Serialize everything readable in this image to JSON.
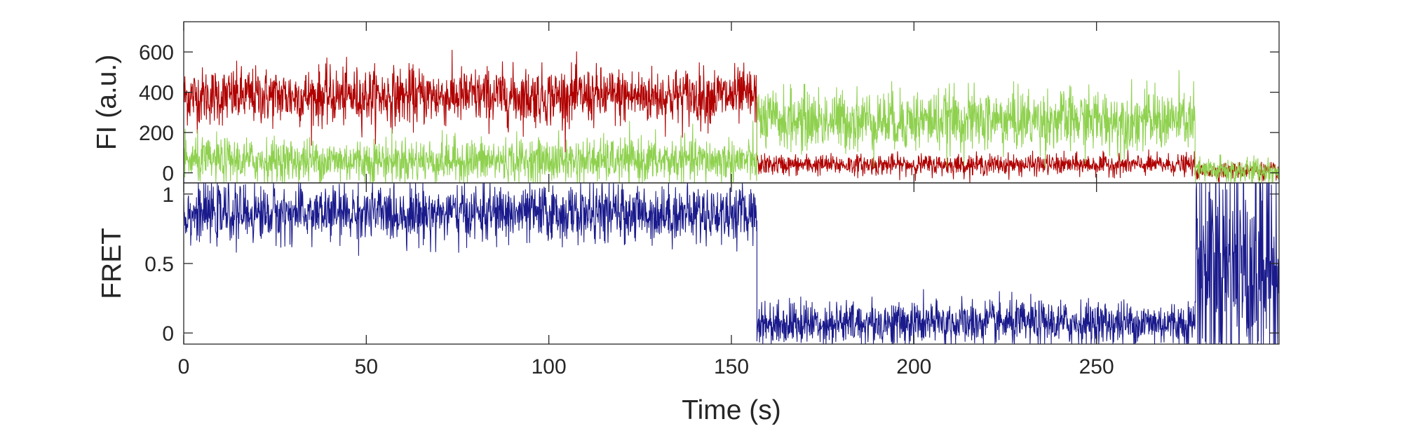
{
  "chart_data": [
    {
      "type": "line",
      "panel": "top",
      "ylabel": "FI (a.u.)",
      "xlim": [
        0,
        300
      ],
      "ylim": [
        -50,
        750
      ],
      "yticks": [
        0,
        200,
        400,
        600
      ],
      "ytick_labels": [
        "0",
        "200",
        "400",
        "600"
      ],
      "xticks": [
        0,
        50,
        100,
        150,
        200,
        250
      ],
      "grid": false,
      "series": [
        {
          "color": "#B00000",
          "segments": [
            {
              "x_start": 0,
              "x_end": 157,
              "mean": 380,
              "noise": 70
            },
            {
              "x_start": 157,
              "x_end": 277,
              "mean": 40,
              "noise": 25
            },
            {
              "x_start": 277,
              "x_end": 300,
              "mean": 10,
              "noise": 20
            }
          ]
        },
        {
          "color": "#8FD14F",
          "segments": [
            {
              "x_start": 0,
              "x_end": 157,
              "mean": 60,
              "noise": 55
            },
            {
              "x_start": 157,
              "x_end": 277,
              "mean": 260,
              "noise": 75
            },
            {
              "x_start": 277,
              "x_end": 300,
              "mean": 10,
              "noise": 35
            }
          ]
        }
      ]
    },
    {
      "type": "line",
      "panel": "bottom",
      "ylabel": "FRET",
      "xlabel": "Time (s)",
      "xlim": [
        0,
        300
      ],
      "ylim": [
        -0.08,
        1.08
      ],
      "yticks": [
        0,
        0.5,
        1
      ],
      "ytick_labels": [
        "0",
        "0.5",
        "1"
      ],
      "xticks": [
        0,
        50,
        100,
        150,
        200,
        250
      ],
      "xtick_labels": [
        "0",
        "50",
        "100",
        "150",
        "200",
        "250"
      ],
      "grid": false,
      "series": [
        {
          "color": "#1A1A8C",
          "segments": [
            {
              "x_start": 0,
              "x_end": 157,
              "mean": 0.86,
              "noise": 0.1
            },
            {
              "x_start": 157,
              "x_end": 277,
              "mean": 0.07,
              "noise": 0.08
            },
            {
              "x_start": 277,
              "x_end": 300,
              "mean": 0.5,
              "noise": 0.5
            }
          ]
        }
      ]
    }
  ]
}
